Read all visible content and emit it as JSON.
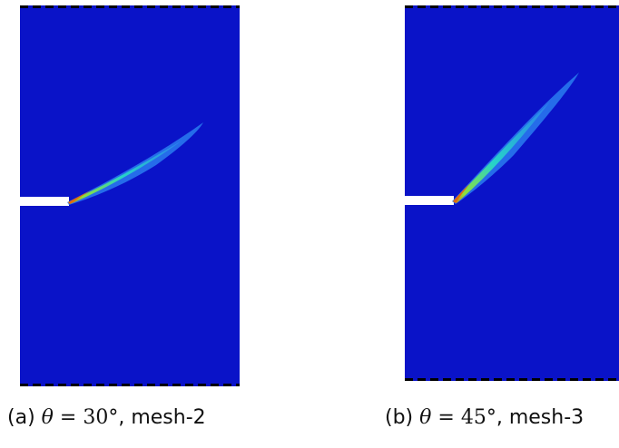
{
  "figures": [
    {
      "caption_prefix": "(a)",
      "theta_symbol": "θ",
      "equals": "=",
      "angle_value": "30°",
      "separator": ",",
      "mesh": "mesh-2"
    },
    {
      "caption_prefix": "(b)",
      "theta_symbol": "θ",
      "equals": "=",
      "angle_value": "45°",
      "separator": ",",
      "mesh": "mesh-3"
    }
  ],
  "colors": {
    "background_field": "#0a13c8",
    "boundary_dash": "#000000",
    "notch": "#ffffff",
    "crack_low": "#2a7df0",
    "crack_mid": "#27d3c8",
    "crack_high": "#8ee03a",
    "crack_tip": "#e06a10"
  }
}
